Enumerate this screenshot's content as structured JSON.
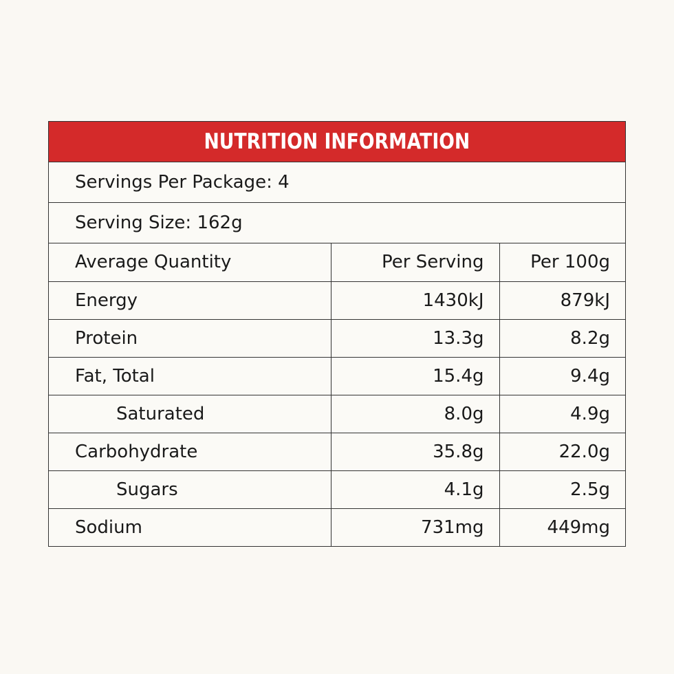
{
  "title": "NUTRITION INFORMATION",
  "servings_per_package": "Servings Per Package: 4",
  "serving_size": "Serving Size: 162g",
  "columns": {
    "quantity": "Average Quantity",
    "per_serving": "Per Serving",
    "per_100g": "Per 100g"
  },
  "rows": [
    {
      "name": "Energy",
      "per_serving": "1430kJ",
      "per_100g": "879kJ"
    },
    {
      "name": "Protein",
      "per_serving": "13.3g",
      "per_100g": "8.2g"
    },
    {
      "name": "Fat, Total",
      "per_serving": "15.4g",
      "per_100g": "9.4g"
    },
    {
      "name": "Saturated",
      "per_serving": "8.0g",
      "per_100g": "4.9g"
    },
    {
      "name": "Carbohydrate",
      "per_serving": "35.8g",
      "per_100g": "22.0g"
    },
    {
      "name": "Sugars",
      "per_serving": "4.1g",
      "per_100g": "2.5g"
    },
    {
      "name": "Sodium",
      "per_serving": "731mg",
      "per_100g": "449mg"
    }
  ],
  "colors": {
    "header_bg": "#d42a2a",
    "header_text": "#ffffff",
    "page_bg": "#faf8f3"
  }
}
